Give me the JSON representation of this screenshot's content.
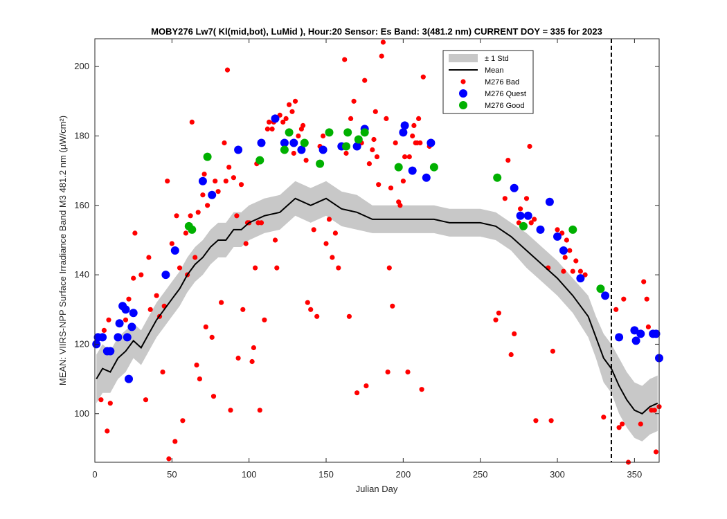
{
  "chart_data": {
    "type": "scatter",
    "title": "MOBY276   Lw7( Kl(mid,bot), LuMid ),   Hour:20 Sensor: Es Band: 3(481.2 nm)   CURRENT DOY = 335 for 2023",
    "xlabel": "Julian Day",
    "ylabel": "MEAN: VIIRS-NPP Surface Irradiance Band M3 481.2 nm (µW/cm²)",
    "xlim": [
      0,
      366
    ],
    "ylim": [
      86,
      208
    ],
    "xticks": [
      "0",
      "50",
      "100",
      "150",
      "200",
      "250",
      "300",
      "350"
    ],
    "yticks": [
      "100",
      "120",
      "140",
      "160",
      "180",
      "200"
    ],
    "current_doy": 335,
    "legend_position": "top-right",
    "legend": [
      {
        "label": "± 1 Std",
        "color": "#c8c8c8",
        "kind": "patch"
      },
      {
        "label": "Mean",
        "color": "#000000",
        "kind": "line"
      },
      {
        "label": "M276 Bad",
        "color": "#ff0000",
        "kind": "small-dot"
      },
      {
        "label": "M276 Quest",
        "color": "#0000ff",
        "kind": "big-dot"
      },
      {
        "label": "M276 Good",
        "color": "#00b000",
        "kind": "big-dot"
      }
    ],
    "mean": {
      "name": "Mean",
      "x": [
        1,
        5,
        10,
        15,
        20,
        25,
        30,
        35,
        40,
        45,
        50,
        55,
        60,
        65,
        70,
        75,
        80,
        85,
        90,
        95,
        100,
        110,
        120,
        130,
        140,
        150,
        160,
        170,
        180,
        190,
        200,
        210,
        220,
        230,
        240,
        250,
        260,
        270,
        280,
        290,
        300,
        310,
        320,
        325,
        330,
        335,
        340,
        345,
        350,
        355,
        360,
        365
      ],
      "y": [
        110,
        113,
        112,
        116,
        118,
        121,
        119,
        123,
        127,
        130,
        133,
        136,
        140,
        143,
        145,
        148,
        150,
        150,
        153,
        153,
        155,
        157,
        158,
        162,
        160,
        162,
        159,
        158,
        156,
        156,
        156,
        156,
        156,
        155,
        155,
        155,
        154,
        151,
        147,
        143,
        139,
        134,
        128,
        122,
        116,
        113,
        108,
        104,
        101,
        100,
        102,
        103
      ],
      "std": [
        7,
        7,
        6,
        6,
        6,
        5,
        5,
        5,
        5,
        5,
        5,
        5,
        5,
        5,
        5,
        5,
        5,
        5,
        5,
        5,
        5,
        5,
        5,
        5,
        5,
        5,
        5,
        5,
        4,
        4,
        4,
        4,
        4,
        4,
        4,
        4,
        4,
        4,
        5,
        5,
        5,
        5,
        6,
        6,
        7,
        7,
        8,
        8,
        8,
        8,
        8,
        8
      ]
    },
    "series": [
      {
        "name": "M276 Bad",
        "color": "#ff0000",
        "points": [
          [
            4,
            104
          ],
          [
            6,
            124
          ],
          [
            8,
            95
          ],
          [
            9,
            127
          ],
          [
            10,
            103
          ],
          [
            15,
            122
          ],
          [
            20,
            127
          ],
          [
            22,
            133
          ],
          [
            25,
            139
          ],
          [
            26,
            152
          ],
          [
            30,
            140
          ],
          [
            33,
            104
          ],
          [
            35,
            145
          ],
          [
            36,
            130
          ],
          [
            40,
            134
          ],
          [
            42,
            128
          ],
          [
            44,
            112
          ],
          [
            45,
            131
          ],
          [
            47,
            167
          ],
          [
            48,
            87
          ],
          [
            50,
            149
          ],
          [
            52,
            92
          ],
          [
            53,
            157
          ],
          [
            55,
            142
          ],
          [
            57,
            98
          ],
          [
            59,
            152
          ],
          [
            60,
            140
          ],
          [
            62,
            157
          ],
          [
            63,
            184
          ],
          [
            64,
            153
          ],
          [
            65,
            145
          ],
          [
            66,
            114
          ],
          [
            67,
            158
          ],
          [
            68,
            110
          ],
          [
            70,
            163
          ],
          [
            71,
            169
          ],
          [
            72,
            125
          ],
          [
            73,
            160
          ],
          [
            75,
            163
          ],
          [
            76,
            122
          ],
          [
            77,
            105
          ],
          [
            78,
            167
          ],
          [
            80,
            164
          ],
          [
            82,
            132
          ],
          [
            84,
            178
          ],
          [
            85,
            167
          ],
          [
            86,
            199
          ],
          [
            87,
            171
          ],
          [
            88,
            101
          ],
          [
            90,
            168
          ],
          [
            92,
            157
          ],
          [
            93,
            116
          ],
          [
            95,
            166
          ],
          [
            96,
            130
          ],
          [
            98,
            149
          ],
          [
            99,
            155
          ],
          [
            100,
            155
          ],
          [
            102,
            115
          ],
          [
            103,
            119
          ],
          [
            104,
            142
          ],
          [
            105,
            172
          ],
          [
            106,
            155
          ],
          [
            107,
            101
          ],
          [
            108,
            155
          ],
          [
            110,
            127
          ],
          [
            112,
            182
          ],
          [
            113,
            184
          ],
          [
            115,
            182
          ],
          [
            116,
            184
          ],
          [
            117,
            150
          ],
          [
            118,
            142
          ],
          [
            120,
            186
          ],
          [
            122,
            184
          ],
          [
            124,
            185
          ],
          [
            126,
            189
          ],
          [
            128,
            187
          ],
          [
            129,
            175
          ],
          [
            130,
            190
          ],
          [
            132,
            180
          ],
          [
            134,
            182
          ],
          [
            135,
            183
          ],
          [
            137,
            173
          ],
          [
            138,
            132
          ],
          [
            140,
            130
          ],
          [
            142,
            153
          ],
          [
            144,
            128
          ],
          [
            146,
            177
          ],
          [
            148,
            180
          ],
          [
            150,
            149
          ],
          [
            152,
            156
          ],
          [
            154,
            145
          ],
          [
            156,
            152
          ],
          [
            158,
            142
          ],
          [
            160,
            177
          ],
          [
            162,
            202
          ],
          [
            163,
            175
          ],
          [
            165,
            128
          ],
          [
            166,
            185
          ],
          [
            168,
            190
          ],
          [
            170,
            106
          ],
          [
            171,
            177
          ],
          [
            173,
            178
          ],
          [
            175,
            196
          ],
          [
            176,
            108
          ],
          [
            178,
            172
          ],
          [
            180,
            176
          ],
          [
            181,
            179
          ],
          [
            182,
            187
          ],
          [
            183,
            174
          ],
          [
            184,
            166
          ],
          [
            186,
            203
          ],
          [
            187,
            207
          ],
          [
            189,
            185
          ],
          [
            190,
            112
          ],
          [
            191,
            142
          ],
          [
            192,
            165
          ],
          [
            193,
            131
          ],
          [
            195,
            178
          ],
          [
            197,
            161
          ],
          [
            198,
            160
          ],
          [
            200,
            167
          ],
          [
            201,
            174
          ],
          [
            203,
            112
          ],
          [
            204,
            174
          ],
          [
            206,
            180
          ],
          [
            207,
            183
          ],
          [
            208,
            178
          ],
          [
            209,
            178
          ],
          [
            210,
            185
          ],
          [
            211,
            178
          ],
          [
            212,
            107
          ],
          [
            213,
            197
          ],
          [
            217,
            177
          ],
          [
            218,
            178
          ],
          [
            260,
            127
          ],
          [
            262,
            129
          ],
          [
            266,
            162
          ],
          [
            268,
            173
          ],
          [
            270,
            117
          ],
          [
            272,
            123
          ],
          [
            275,
            155
          ],
          [
            276,
            159
          ],
          [
            280,
            162
          ],
          [
            282,
            177
          ],
          [
            283,
            155
          ],
          [
            285,
            156
          ],
          [
            286,
            98
          ],
          [
            290,
            153
          ],
          [
            294,
            142
          ],
          [
            296,
            98
          ],
          [
            297,
            118
          ],
          [
            300,
            153
          ],
          [
            303,
            152
          ],
          [
            304,
            141
          ],
          [
            305,
            145
          ],
          [
            306,
            150
          ],
          [
            308,
            147
          ],
          [
            310,
            141
          ],
          [
            312,
            144
          ],
          [
            315,
            141
          ],
          [
            318,
            140
          ],
          [
            330,
            99
          ],
          [
            338,
            130
          ],
          [
            340,
            96
          ],
          [
            342,
            97
          ],
          [
            343,
            133
          ],
          [
            346,
            86
          ],
          [
            354,
            97
          ],
          [
            356,
            138
          ],
          [
            358,
            133
          ],
          [
            359,
            125
          ],
          [
            361,
            101
          ],
          [
            363,
            101
          ],
          [
            364,
            89
          ],
          [
            366,
            102
          ]
        ]
      },
      {
        "name": "M276 Quest",
        "color": "#0000ff",
        "points": [
          [
            1,
            120
          ],
          [
            2,
            122
          ],
          [
            5,
            122
          ],
          [
            8,
            118
          ],
          [
            10,
            118
          ],
          [
            15,
            122
          ],
          [
            16,
            126
          ],
          [
            18,
            131
          ],
          [
            20,
            130
          ],
          [
            21,
            122
          ],
          [
            22,
            110
          ],
          [
            24,
            125
          ],
          [
            25,
            129
          ],
          [
            46,
            140
          ],
          [
            52,
            147
          ],
          [
            70,
            167
          ],
          [
            76,
            163
          ],
          [
            93,
            176
          ],
          [
            108,
            178
          ],
          [
            117,
            185
          ],
          [
            123,
            178
          ],
          [
            129,
            178
          ],
          [
            134,
            176
          ],
          [
            148,
            176
          ],
          [
            160,
            177
          ],
          [
            170,
            177
          ],
          [
            175,
            182
          ],
          [
            200,
            181
          ],
          [
            201,
            183
          ],
          [
            206,
            170
          ],
          [
            215,
            168
          ],
          [
            218,
            178
          ],
          [
            272,
            165
          ],
          [
            276,
            157
          ],
          [
            281,
            157
          ],
          [
            289,
            153
          ],
          [
            295,
            161
          ],
          [
            300,
            151
          ],
          [
            304,
            147
          ],
          [
            315,
            139
          ],
          [
            331,
            134
          ],
          [
            340,
            122
          ],
          [
            350,
            124
          ],
          [
            351,
            121
          ],
          [
            354,
            123
          ],
          [
            362,
            123
          ],
          [
            364,
            123
          ],
          [
            366,
            116
          ]
        ]
      },
      {
        "name": "M276 Good",
        "color": "#00b000",
        "points": [
          [
            61,
            154
          ],
          [
            63,
            153
          ],
          [
            73,
            174
          ],
          [
            107,
            173
          ],
          [
            123,
            176
          ],
          [
            126,
            181
          ],
          [
            136,
            178
          ],
          [
            146,
            172
          ],
          [
            152,
            181
          ],
          [
            163,
            177
          ],
          [
            164,
            181
          ],
          [
            171,
            179
          ],
          [
            175,
            181
          ],
          [
            197,
            171
          ],
          [
            220,
            171
          ],
          [
            261,
            168
          ],
          [
            278,
            154
          ],
          [
            310,
            153
          ],
          [
            328,
            136
          ]
        ]
      }
    ]
  }
}
